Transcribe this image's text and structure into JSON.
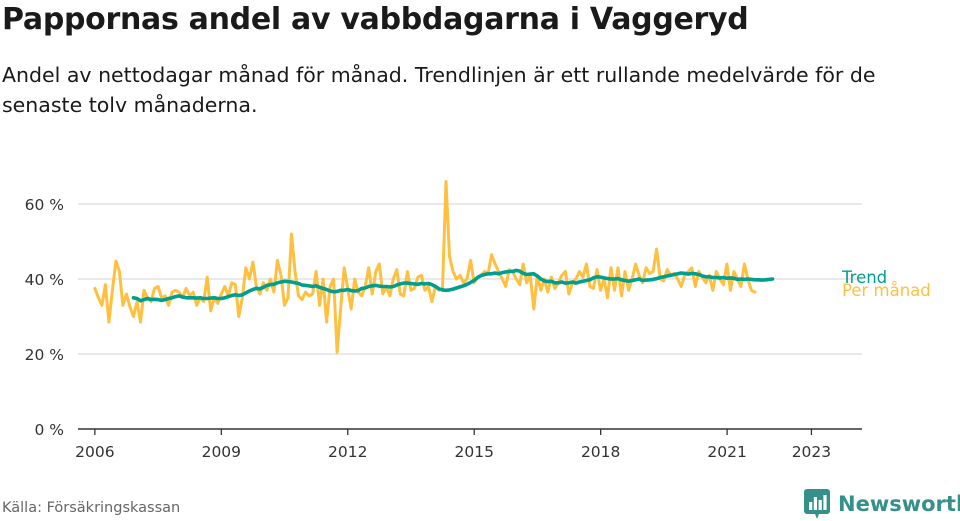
{
  "title": "Pappornas andel av vabbdagarna i Vaggeryd",
  "subtitle": "Andel av nettodagar månad för månad. Trendlinjen är ett rullande medelvärde för de senaste tolv månaderna.",
  "source": "Källa: Försäkringskassan",
  "brand": {
    "name": "Newsworthy",
    "icon": "newsworthy-logo-icon",
    "color": "#33918a"
  },
  "chart_data": {
    "type": "line",
    "title": "Pappornas andel av vabbdagarna i Vaggeryd",
    "xlabel": "",
    "ylabel": "",
    "xlim": [
      2005.6,
      2024.2
    ],
    "ylim": [
      0,
      60
    ],
    "yticks": [
      0,
      20,
      40,
      60
    ],
    "ytick_labels": [
      "0 %",
      "20 %",
      "40 %",
      "60 %"
    ],
    "xticks": [
      2006,
      2009,
      2012,
      2015,
      2018,
      2021,
      2023
    ],
    "xtick_labels": [
      "2006",
      "2009",
      "2012",
      "2015",
      "2018",
      "2021",
      "2023"
    ],
    "grid": "horizontal",
    "legend": "right-end labels",
    "series": [
      {
        "name": "Per månad",
        "color": "#ffc040",
        "start": 2006.0,
        "step": 0.0833,
        "values": [
          37.5,
          35.0,
          33.0,
          38.5,
          28.5,
          37.0,
          44.8,
          42.0,
          33.0,
          36.0,
          32.5,
          30.0,
          34.0,
          28.5,
          37.0,
          35.0,
          34.0,
          37.5,
          38.0,
          35.0,
          35.5,
          33.0,
          36.5,
          37.0,
          36.5,
          35.0,
          37.5,
          35.5,
          36.5,
          33.0,
          35.0,
          34.0,
          40.5,
          31.5,
          35.0,
          33.5,
          36.0,
          38.0,
          35.5,
          39.0,
          38.5,
          30.0,
          35.0,
          43.0,
          40.0,
          44.5,
          38.0,
          36.0,
          39.0,
          37.0,
          40.0,
          36.5,
          45.0,
          41.0,
          33.0,
          35.0,
          52.0,
          42.0,
          35.5,
          34.5,
          36.5,
          35.5,
          36.0,
          42.0,
          33.0,
          40.0,
          28.5,
          38.0,
          40.0,
          20.5,
          32.0,
          43.0,
          37.5,
          32.0,
          40.0,
          36.5,
          35.5,
          38.0,
          43.0,
          36.0,
          42.0,
          44.0,
          36.0,
          38.0,
          35.5,
          40.0,
          42.5,
          36.0,
          35.5,
          42.0,
          37.0,
          37.5,
          40.5,
          41.0,
          37.0,
          38.0,
          34.0,
          38.0,
          37.0,
          37.5,
          66.0,
          46.0,
          42.0,
          40.0,
          41.0,
          39.0,
          40.0,
          45.0,
          39.0,
          40.5,
          41.0,
          42.0,
          41.5,
          46.5,
          44.0,
          42.0,
          40.0,
          38.0,
          42.5,
          42.0,
          40.0,
          38.5,
          44.0,
          39.0,
          41.0,
          32.0,
          41.0,
          37.0,
          40.0,
          36.5,
          40.5,
          37.5,
          39.0,
          41.0,
          42.0,
          36.0,
          39.0,
          40.0,
          42.0,
          40.5,
          44.0,
          38.0,
          37.5,
          42.5,
          37.0,
          40.0,
          35.0,
          43.0,
          37.0,
          43.0,
          35.5,
          42.0,
          37.0,
          40.0,
          44.0,
          41.0,
          39.0,
          43.0,
          41.5,
          42.0,
          48.0,
          40.0,
          39.5,
          42.5,
          41.0,
          41.5,
          40.0,
          38.0,
          41.0,
          42.0,
          43.0,
          38.0,
          42.0,
          40.5,
          39.0,
          41.0,
          37.0,
          42.0,
          40.0,
          38.5,
          44.0,
          37.0,
          42.0,
          40.0,
          38.0,
          44.0,
          40.0,
          37.0,
          36.5
        ]
      },
      {
        "name": "Trend",
        "color": "#009e8e",
        "start": 2006.9167,
        "step": 0.0833,
        "values": [
          35.0,
          34.8,
          34.2,
          34.5,
          34.8,
          34.5,
          34.6,
          34.5,
          34.3,
          34.5,
          34.8,
          35.0,
          35.3,
          35.5,
          35.2,
          35.0,
          35.0,
          35.0,
          34.9,
          35.0,
          34.8,
          34.8,
          34.9,
          35.0,
          34.8,
          34.8,
          35.0,
          35.3,
          35.6,
          35.8,
          35.6,
          35.8,
          36.3,
          36.8,
          37.2,
          37.5,
          37.4,
          37.8,
          38.3,
          38.5,
          38.6,
          39.0,
          39.2,
          39.4,
          39.3,
          39.2,
          39.0,
          38.8,
          38.4,
          38.3,
          38.2,
          38.0,
          38.2,
          37.8,
          37.5,
          37.2,
          36.8,
          36.6,
          36.7,
          37.0,
          37.0,
          37.2,
          36.9,
          36.8,
          36.9,
          37.5,
          37.6,
          38.0,
          38.2,
          38.3,
          38.1,
          38.0,
          38.0,
          37.9,
          38.0,
          38.4,
          38.7,
          38.9,
          38.9,
          38.8,
          38.7,
          38.6,
          38.8,
          38.7,
          38.8,
          38.5,
          38.0,
          37.4,
          37.1,
          37.0,
          37.1,
          37.3,
          37.6,
          37.9,
          38.2,
          38.6,
          39.1,
          39.6,
          40.4,
          40.9,
          41.2,
          41.4,
          41.4,
          41.6,
          41.4,
          41.7,
          41.9,
          42.0,
          42.0,
          42.3,
          42.1,
          41.5,
          41.2,
          41.3,
          41.4,
          40.8,
          40.0,
          39.5,
          39.3,
          39.4,
          39.0,
          39.0,
          39.2,
          38.9,
          39.0,
          39.2,
          38.9,
          39.2,
          39.4,
          39.6,
          39.8,
          40.3,
          40.6,
          40.5,
          40.3,
          40.1,
          40.0,
          40.0,
          40.1,
          39.8,
          39.6,
          39.4,
          39.6,
          39.8,
          40.0,
          39.6,
          39.7,
          39.8,
          39.9,
          40.1,
          40.4,
          40.6,
          40.8,
          41.0,
          41.2,
          41.4,
          41.6,
          41.5,
          41.3,
          41.5,
          41.4,
          41.2,
          40.8,
          40.6,
          40.6,
          40.4,
          40.4,
          40.3,
          40.4,
          40.2,
          40.3,
          40.2,
          39.9,
          40.0,
          39.9,
          40.0,
          39.9,
          39.8,
          39.8,
          39.7,
          39.8,
          39.9,
          40.0
        ]
      }
    ]
  }
}
